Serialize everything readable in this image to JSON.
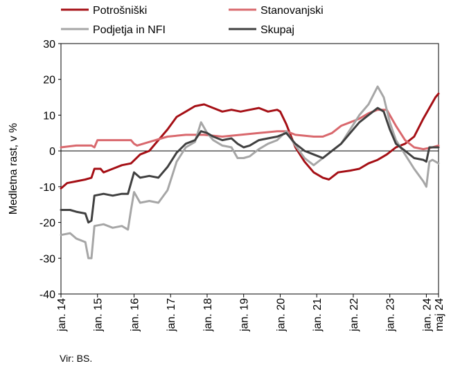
{
  "chart_data": {
    "type": "line",
    "title": "",
    "ylabel": "Medletna rast, v %",
    "xlabel": "",
    "ylim": [
      -40,
      30
    ],
    "yticks": [
      30,
      20,
      10,
      0,
      -10,
      -20,
      -30,
      -40
    ],
    "xlim": [
      "2014-01",
      "2024-05"
    ],
    "xtick_labels": [
      {
        "date": "2014-01",
        "label": "jan. 14"
      },
      {
        "date": "2015-01",
        "label": "jan. 15"
      },
      {
        "date": "2016-01",
        "label": "jan. 16"
      },
      {
        "date": "2017-01",
        "label": "jan. 17"
      },
      {
        "date": "2018-01",
        "label": "jan. 18"
      },
      {
        "date": "2019-01",
        "label": "jan. 19"
      },
      {
        "date": "2020-01",
        "label": "jan. 20"
      },
      {
        "date": "2021-01",
        "label": "jan. 21"
      },
      {
        "date": "2022-01",
        "label": "jan. 22"
      },
      {
        "date": "2023-01",
        "label": "jan. 23"
      },
      {
        "date": "2024-01",
        "label": "jan. 24"
      },
      {
        "date": "2024-05",
        "label": "maj 24"
      }
    ],
    "grid": false,
    "legend": "top",
    "series": [
      {
        "name": "Potrošniški",
        "color": "#a50f15",
        "points": [
          [
            "2014-01",
            -10.5
          ],
          [
            "2014-03",
            -9
          ],
          [
            "2014-06",
            -8.5
          ],
          [
            "2014-09",
            -8
          ],
          [
            "2014-11",
            -7.5
          ],
          [
            "2014-12",
            -5
          ],
          [
            "2015-02",
            -5
          ],
          [
            "2015-03",
            -6
          ],
          [
            "2015-06",
            -5
          ],
          [
            "2015-09",
            -4
          ],
          [
            "2015-12",
            -3.5
          ],
          [
            "2016-03",
            -1
          ],
          [
            "2016-06",
            0
          ],
          [
            "2016-09",
            3
          ],
          [
            "2016-12",
            6
          ],
          [
            "2017-03",
            9.5
          ],
          [
            "2017-06",
            11
          ],
          [
            "2017-09",
            12.5
          ],
          [
            "2017-12",
            13
          ],
          [
            "2018-03",
            12
          ],
          [
            "2018-06",
            11
          ],
          [
            "2018-09",
            11.5
          ],
          [
            "2018-12",
            11
          ],
          [
            "2019-03",
            11.5
          ],
          [
            "2019-06",
            12
          ],
          [
            "2019-09",
            11
          ],
          [
            "2019-12",
            11.5
          ],
          [
            "2020-01",
            11
          ],
          [
            "2020-03",
            7.5
          ],
          [
            "2020-06",
            1
          ],
          [
            "2020-09",
            -3
          ],
          [
            "2020-12",
            -6
          ],
          [
            "2021-03",
            -7.5
          ],
          [
            "2021-05",
            -8
          ],
          [
            "2021-08",
            -6
          ],
          [
            "2021-12",
            -5.5
          ],
          [
            "2022-03",
            -5
          ],
          [
            "2022-06",
            -3.5
          ],
          [
            "2022-09",
            -2.5
          ],
          [
            "2022-12",
            -1
          ],
          [
            "2023-03",
            1
          ],
          [
            "2023-06",
            2
          ],
          [
            "2023-09",
            4
          ],
          [
            "2023-12",
            9
          ],
          [
            "2024-02",
            12
          ],
          [
            "2024-04",
            15
          ],
          [
            "2024-05",
            16
          ]
        ]
      },
      {
        "name": "Stanovanjski",
        "color": "#d9686d",
        "points": [
          [
            "2014-01",
            1
          ],
          [
            "2014-06",
            1.5
          ],
          [
            "2014-11",
            1.5
          ],
          [
            "2014-12",
            1
          ],
          [
            "2015-01",
            3
          ],
          [
            "2015-06",
            3
          ],
          [
            "2015-12",
            3
          ],
          [
            "2016-01",
            2
          ],
          [
            "2016-02",
            1.5
          ],
          [
            "2016-06",
            2.5
          ],
          [
            "2016-12",
            4
          ],
          [
            "2017-06",
            4.5
          ],
          [
            "2017-12",
            4.5
          ],
          [
            "2018-06",
            4
          ],
          [
            "2018-12",
            4.5
          ],
          [
            "2019-06",
            5
          ],
          [
            "2019-12",
            5.5
          ],
          [
            "2020-03",
            5.5
          ],
          [
            "2020-06",
            4.5
          ],
          [
            "2020-12",
            4
          ],
          [
            "2021-03",
            4
          ],
          [
            "2021-06",
            5
          ],
          [
            "2021-09",
            7
          ],
          [
            "2021-12",
            8
          ],
          [
            "2022-03",
            9
          ],
          [
            "2022-06",
            10.5
          ],
          [
            "2022-09",
            11.5
          ],
          [
            "2022-12",
            11.5
          ],
          [
            "2023-03",
            7
          ],
          [
            "2023-06",
            3
          ],
          [
            "2023-09",
            1
          ],
          [
            "2023-12",
            0.5
          ],
          [
            "2024-03",
            1
          ],
          [
            "2024-05",
            1.5
          ]
        ]
      },
      {
        "name": "Podjetja in NFI",
        "color": "#a6a6a6",
        "points": [
          [
            "2014-01",
            -23.5
          ],
          [
            "2014-04",
            -23
          ],
          [
            "2014-06",
            -24.5
          ],
          [
            "2014-09",
            -25.5
          ],
          [
            "2014-10",
            -30
          ],
          [
            "2014-11",
            -30
          ],
          [
            "2014-12",
            -21
          ],
          [
            "2015-03",
            -20.5
          ],
          [
            "2015-06",
            -21.5
          ],
          [
            "2015-09",
            -21
          ],
          [
            "2015-11",
            -22
          ],
          [
            "2015-12",
            -16.5
          ],
          [
            "2016-01",
            -11.5
          ],
          [
            "2016-03",
            -14.5
          ],
          [
            "2016-06",
            -14
          ],
          [
            "2016-09",
            -14.5
          ],
          [
            "2016-12",
            -11
          ],
          [
            "2017-03",
            -3
          ],
          [
            "2017-06",
            1
          ],
          [
            "2017-09",
            2.5
          ],
          [
            "2017-11",
            8
          ],
          [
            "2018-01",
            5
          ],
          [
            "2018-03",
            3
          ],
          [
            "2018-06",
            1.5
          ],
          [
            "2018-09",
            1
          ],
          [
            "2018-11",
            -2
          ],
          [
            "2019-01",
            -2
          ],
          [
            "2019-03",
            -1.5
          ],
          [
            "2019-06",
            0.5
          ],
          [
            "2019-09",
            2
          ],
          [
            "2019-12",
            3
          ],
          [
            "2020-03",
            5.5
          ],
          [
            "2020-06",
            1.5
          ],
          [
            "2020-09",
            -2
          ],
          [
            "2020-12",
            -4
          ],
          [
            "2021-03",
            -2
          ],
          [
            "2021-06",
            0
          ],
          [
            "2021-09",
            2
          ],
          [
            "2021-12",
            6
          ],
          [
            "2022-03",
            10
          ],
          [
            "2022-06",
            13
          ],
          [
            "2022-09",
            18
          ],
          [
            "2022-11",
            15
          ],
          [
            "2023-01",
            8
          ],
          [
            "2023-03",
            3
          ],
          [
            "2023-06",
            -1
          ],
          [
            "2023-09",
            -5
          ],
          [
            "2023-12",
            -8.5
          ],
          [
            "2024-01",
            -10
          ],
          [
            "2024-02",
            -3
          ],
          [
            "2024-03",
            -2.5
          ],
          [
            "2024-05",
            -3.5
          ]
        ]
      },
      {
        "name": "Skupaj",
        "color": "#404040",
        "points": [
          [
            "2014-01",
            -16.5
          ],
          [
            "2014-04",
            -16.5
          ],
          [
            "2014-06",
            -17
          ],
          [
            "2014-09",
            -17.5
          ],
          [
            "2014-10",
            -20
          ],
          [
            "2014-11",
            -19.5
          ],
          [
            "2014-12",
            -12.5
          ],
          [
            "2015-03",
            -12
          ],
          [
            "2015-06",
            -12.5
          ],
          [
            "2015-09",
            -12
          ],
          [
            "2015-11",
            -12
          ],
          [
            "2015-12",
            -9
          ],
          [
            "2016-01",
            -6
          ],
          [
            "2016-03",
            -7.5
          ],
          [
            "2016-06",
            -7
          ],
          [
            "2016-09",
            -7.5
          ],
          [
            "2016-12",
            -4.5
          ],
          [
            "2017-03",
            -0.5
          ],
          [
            "2017-06",
            2
          ],
          [
            "2017-09",
            3
          ],
          [
            "2017-11",
            5.5
          ],
          [
            "2018-01",
            5
          ],
          [
            "2018-03",
            4
          ],
          [
            "2018-06",
            3
          ],
          [
            "2018-09",
            3.5
          ],
          [
            "2018-11",
            2
          ],
          [
            "2019-01",
            1
          ],
          [
            "2019-03",
            1.5
          ],
          [
            "2019-06",
            3
          ],
          [
            "2019-09",
            3.5
          ],
          [
            "2019-12",
            4
          ],
          [
            "2020-03",
            5
          ],
          [
            "2020-06",
            2
          ],
          [
            "2020-09",
            0
          ],
          [
            "2020-12",
            -1
          ],
          [
            "2021-03",
            -2
          ],
          [
            "2021-06",
            0
          ],
          [
            "2021-09",
            2
          ],
          [
            "2021-12",
            5
          ],
          [
            "2022-03",
            8
          ],
          [
            "2022-06",
            10
          ],
          [
            "2022-09",
            12
          ],
          [
            "2022-11",
            11
          ],
          [
            "2023-01",
            6
          ],
          [
            "2023-03",
            2
          ],
          [
            "2023-06",
            0
          ],
          [
            "2023-09",
            -2
          ],
          [
            "2023-12",
            -2.5
          ],
          [
            "2024-01",
            -3
          ],
          [
            "2024-02",
            1
          ],
          [
            "2024-05",
            1
          ]
        ]
      }
    ]
  },
  "source": "Vir: BS."
}
